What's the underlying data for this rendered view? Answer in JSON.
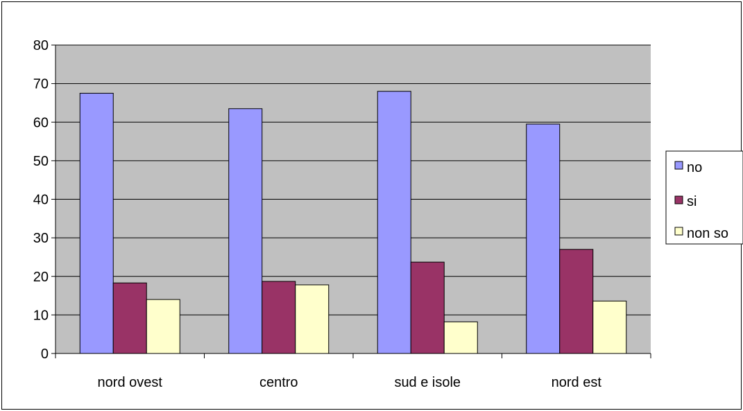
{
  "chart_data": {
    "type": "bar",
    "categories": [
      "nord ovest",
      "centro",
      "sud e isole",
      "nord est"
    ],
    "series": [
      {
        "name": "no",
        "values": [
          67.5,
          63.5,
          68,
          59.5
        ],
        "color": "#9999ff"
      },
      {
        "name": "si",
        "values": [
          18.3,
          18.7,
          23.7,
          27
        ],
        "color": "#993366"
      },
      {
        "name": "non so",
        "values": [
          14,
          17.8,
          8.2,
          13.6
        ],
        "color": "#ffffcc"
      }
    ],
    "y_ticks": [
      "0",
      "10",
      "20",
      "30",
      "40",
      "50",
      "60",
      "70",
      "80"
    ],
    "ylim": [
      0,
      80
    ],
    "grid": true,
    "plot_background": "#c0c0c0",
    "legend_position": "right"
  }
}
